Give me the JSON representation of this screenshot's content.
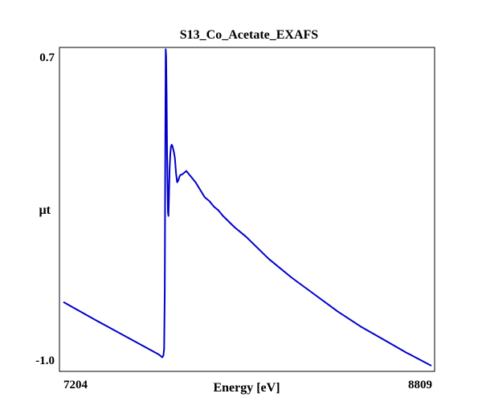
{
  "chart_data": {
    "type": "line",
    "title": "S13_Co_Acetate_EXAFS",
    "xlabel": "Energy [eV]",
    "ylabel": "µt",
    "xlim": [
      7204,
      8809
    ],
    "ylim": [
      -1.0,
      0.7
    ],
    "x_tick_labels": [
      "7204",
      "8809"
    ],
    "y_tick_labels": [
      "0.7",
      "-1.0"
    ],
    "grid": false,
    "legend": "none",
    "series": [
      {
        "color": "#0000cc",
        "x": [
          7204,
          7350,
          7500,
          7620,
          7635,
          7640,
          7643,
          7646,
          7648,
          7650,
          7652,
          7654,
          7656,
          7658,
          7660,
          7662,
          7664,
          7667,
          7670,
          7673,
          7676,
          7679,
          7682,
          7686,
          7690,
          7695,
          7700,
          7705,
          7710,
          7715,
          7720,
          7730,
          7740,
          7760,
          7780,
          7800,
          7820,
          7840,
          7860,
          7880,
          7900,
          7950,
          8000,
          8100,
          8200,
          8300,
          8400,
          8500,
          8600,
          8700,
          8809
        ],
        "y": [
          -0.66,
          -0.76,
          -0.86,
          -0.94,
          -0.955,
          -0.945,
          -0.91,
          -0.6,
          0.1,
          0.69,
          0.65,
          0.45,
          0.12,
          -0.05,
          -0.18,
          -0.2,
          -0.1,
          0.05,
          0.13,
          0.17,
          0.18,
          0.175,
          0.16,
          0.14,
          0.11,
          0.03,
          -0.02,
          -0.01,
          0.01,
          0.02,
          0.02,
          0.03,
          0.04,
          0.01,
          -0.02,
          -0.06,
          -0.1,
          -0.12,
          -0.15,
          -0.17,
          -0.2,
          -0.26,
          -0.31,
          -0.43,
          -0.53,
          -0.62,
          -0.71,
          -0.79,
          -0.86,
          -0.93,
          -1.0
        ]
      }
    ]
  }
}
